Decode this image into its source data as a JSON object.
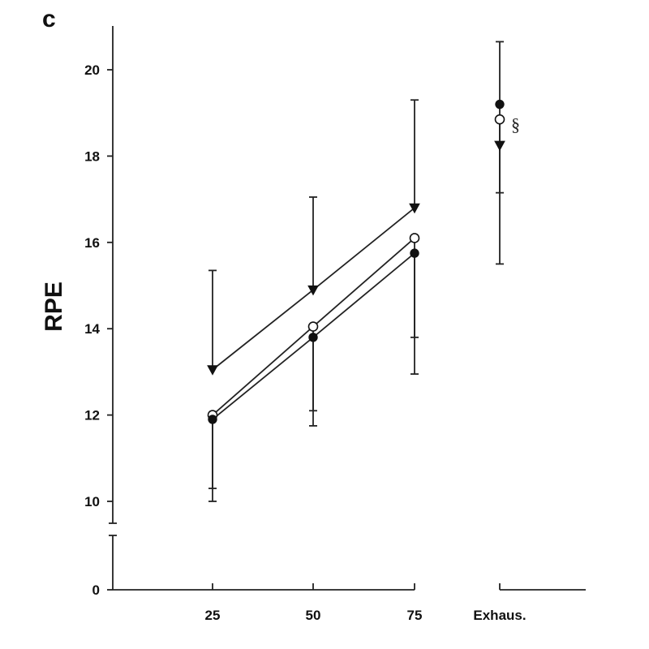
{
  "chart_data": {
    "type": "line",
    "panel_label": "c",
    "title": "",
    "xlabel": "",
    "ylabel": "RPE",
    "categories": [
      "25",
      "50",
      "75",
      "Exhaus."
    ],
    "ylim": [
      0,
      21
    ],
    "yticks": [
      "0",
      "10",
      "12",
      "14",
      "16",
      "18",
      "20"
    ],
    "y_axis_break": "between 0 and 10",
    "grid": false,
    "legend": "none",
    "series": [
      {
        "marker": "filled-triangle-down",
        "connected_points": 3,
        "values": [
          13.05,
          14.9,
          16.8,
          18.25
        ],
        "error_upper": [
          15.35,
          17.05,
          19.3,
          20.65
        ],
        "error_lower": [
          null,
          null,
          null,
          15.5
        ]
      },
      {
        "marker": "open-circle",
        "connected_points": 3,
        "values": [
          12.0,
          14.05,
          16.1,
          18.85
        ],
        "error_upper": [
          null,
          null,
          null,
          null
        ],
        "error_lower": [
          10.3,
          12.1,
          13.8,
          17.15
        ]
      },
      {
        "marker": "filled-circle",
        "connected_points": 3,
        "values": [
          11.9,
          13.8,
          15.75,
          19.2
        ],
        "error_upper": [
          null,
          null,
          null,
          null
        ],
        "error_lower": [
          10.0,
          11.75,
          12.95,
          null
        ]
      }
    ],
    "annotations": [
      {
        "text": "§",
        "category": "Exhaus.",
        "y": 18.85
      }
    ]
  }
}
